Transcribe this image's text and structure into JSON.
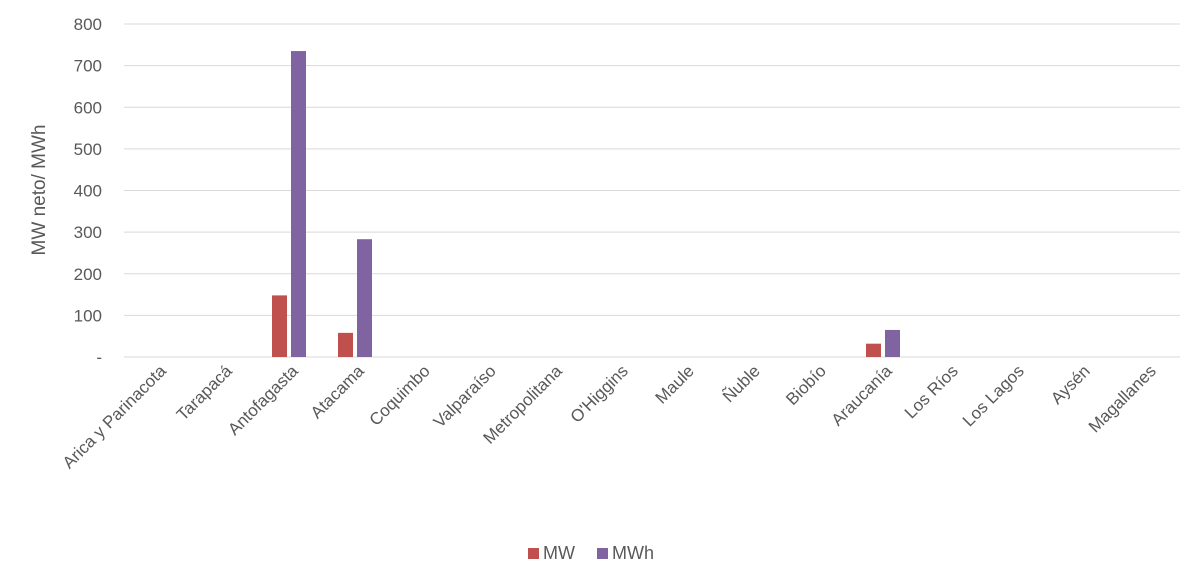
{
  "chart_data": {
    "type": "bar",
    "title": "",
    "xlabel": "",
    "ylabel": "MW neto/ MWh",
    "ylim": [
      0,
      800
    ],
    "yticks": [
      {
        "value": 0,
        "label": "-"
      },
      {
        "value": 100,
        "label": "100"
      },
      {
        "value": 200,
        "label": "200"
      },
      {
        "value": 300,
        "label": "300"
      },
      {
        "value": 400,
        "label": "400"
      },
      {
        "value": 500,
        "label": "500"
      },
      {
        "value": 600,
        "label": "600"
      },
      {
        "value": 700,
        "label": "700"
      },
      {
        "value": 800,
        "label": "800"
      }
    ],
    "grid": true,
    "legend_position": "bottom",
    "categories": [
      "Arica y Parinacota",
      "Tarapacá",
      "Antofagasta",
      "Atacama",
      "Coquimbo",
      "Valparaíso",
      "Metropolitana",
      "O'Higgins",
      "Maule",
      "Ñuble",
      "Biobío",
      "Araucanía",
      "Los Ríos",
      "Los Lagos",
      "Aysén",
      "Magallanes"
    ],
    "series": [
      {
        "name": "MW",
        "color": "#C0504D",
        "values": [
          0,
          0,
          148,
          58,
          0,
          0,
          0,
          0,
          0,
          0,
          0,
          32,
          0,
          0,
          0,
          0
        ]
      },
      {
        "name": "MWh",
        "color": "#8064A2",
        "values": [
          0,
          0,
          735,
          283,
          0,
          0,
          0,
          0,
          0,
          0,
          0,
          65,
          0,
          0,
          0,
          0
        ]
      }
    ]
  }
}
